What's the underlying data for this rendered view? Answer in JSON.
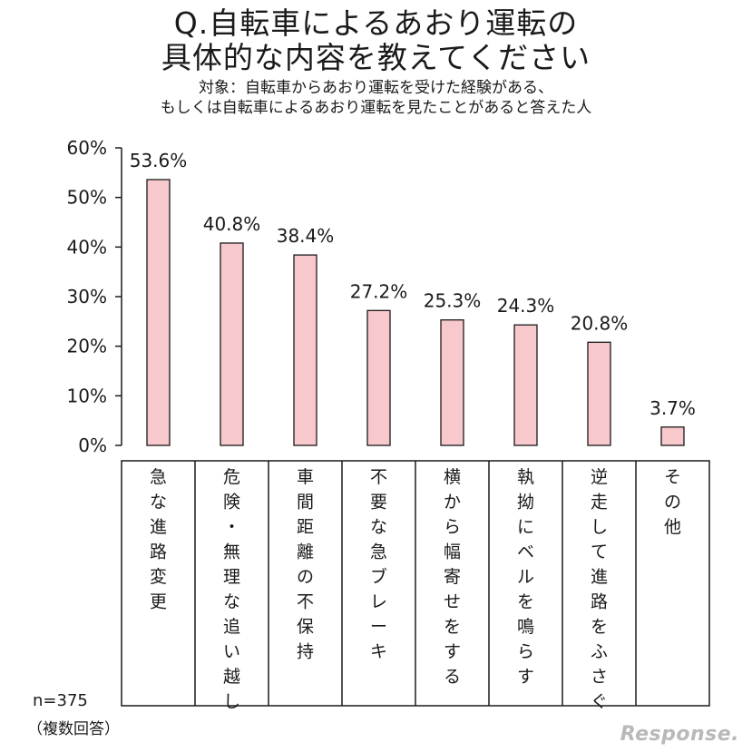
{
  "title": {
    "line1": "Q.自転車によるあおり運転の",
    "line2": "具体的な内容を教えてください"
  },
  "subtitle": {
    "line1": "対象：自転車からあおり運転を受けた経験がある、",
    "line2": "もしくは自転車によるあおり運転を見たことがあると答えた人"
  },
  "footnote": {
    "n": "n=375",
    "multiple": "（複数回答）"
  },
  "watermark": "Response.",
  "colors": {
    "bar_fill": "#f7c8cc",
    "bar_stroke": "#1a1a1a"
  },
  "chart_data": {
    "type": "bar",
    "categories": [
      "急な進路変更",
      "危険・無理な追い越し",
      "車間距離の不保持",
      "不要な急ブレーキ",
      "横から幅寄せをする",
      "執拗にベルを鳴らす",
      "逆走して進路をふさぐ",
      "その他"
    ],
    "values": [
      53.6,
      40.8,
      38.4,
      27.2,
      25.3,
      24.3,
      20.8,
      3.7
    ],
    "value_labels": [
      "53.6%",
      "40.8%",
      "38.4%",
      "27.2%",
      "25.3%",
      "24.3%",
      "20.8%",
      "3.7%"
    ],
    "yticks": [
      "0%",
      "10%",
      "20%",
      "30%",
      "40%",
      "50%",
      "60%"
    ],
    "ylim": [
      0,
      60
    ],
    "unit": "%",
    "grid": false,
    "legend": false
  }
}
